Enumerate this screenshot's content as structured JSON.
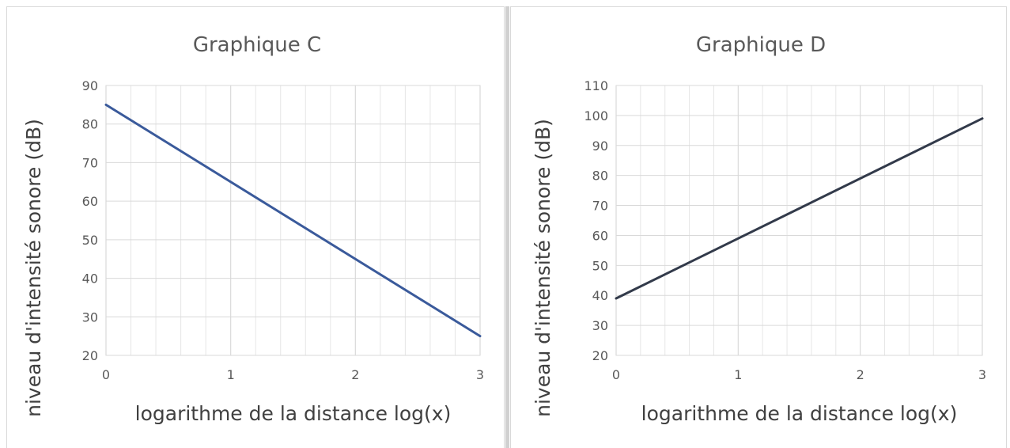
{
  "chart_data": [
    {
      "type": "line",
      "title": "Graphique C",
      "xlabel": "logarithme de la distance log(x)",
      "ylabel": "niveau d'intensité sonore (dB)",
      "xlim": [
        0,
        3
      ],
      "ylim": [
        20,
        90
      ],
      "x_ticks": [
        "0",
        "1",
        "2",
        "3"
      ],
      "y_ticks": [
        "20",
        "30",
        "40",
        "50",
        "60",
        "70",
        "80",
        "90"
      ],
      "grid": true,
      "minor_grid": true,
      "line_color": "#3a5a9b",
      "series": [
        {
          "x": [
            0,
            3
          ],
          "y": [
            85,
            25
          ]
        }
      ]
    },
    {
      "type": "line",
      "title": "Graphique D",
      "xlabel": "logarithme de la distance log(x)",
      "ylabel": "niveau d'intensité sonore (dB)",
      "xlim": [
        0,
        3
      ],
      "ylim": [
        20,
        110
      ],
      "x_ticks": [
        "0",
        "1",
        "2",
        "3"
      ],
      "y_ticks": [
        "20",
        "30",
        "40",
        "50",
        "60",
        "70",
        "80",
        "90",
        "100",
        "110"
      ],
      "grid": true,
      "minor_grid": true,
      "line_color": "#323a4a",
      "series": [
        {
          "x": [
            0,
            3
          ],
          "y": [
            39,
            99
          ]
        }
      ]
    }
  ]
}
